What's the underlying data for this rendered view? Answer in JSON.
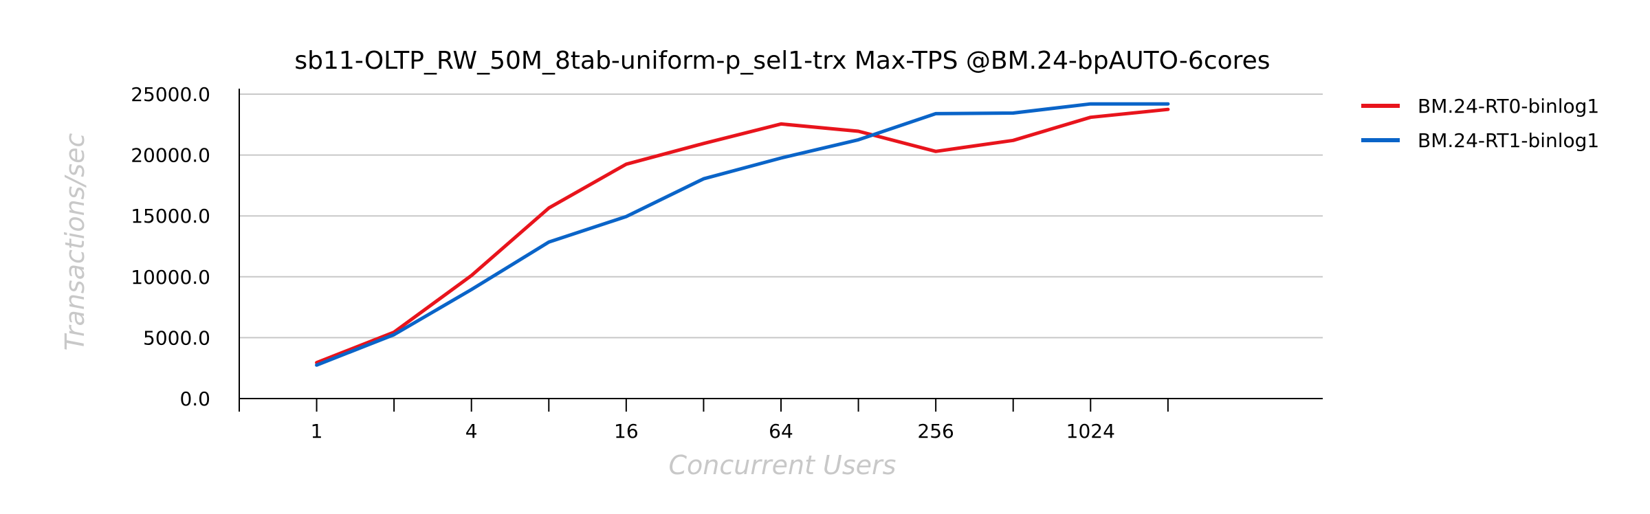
{
  "chart_data": {
    "type": "line",
    "title": "sb11-OLTP_RW_50M_8tab-uniform-p_sel1-trx Max-TPS @BM.24-bpAUTO-6cores",
    "xlabel": "Concurrent Users",
    "ylabel": "Transactions/sec",
    "x_scale": "log2",
    "x": [
      1,
      2,
      4,
      8,
      16,
      32,
      64,
      128,
      256,
      512,
      1024,
      2048
    ],
    "x_tick_labels": [
      "1",
      "4",
      "16",
      "64",
      "256",
      "1024"
    ],
    "x_tick_values": [
      1,
      4,
      16,
      64,
      256,
      1024
    ],
    "xlim": [
      0.5,
      8192
    ],
    "ylim": [
      0,
      25000
    ],
    "y_ticks": [
      0,
      5000,
      10000,
      15000,
      20000,
      25000
    ],
    "y_tick_labels": [
      "0.0",
      "5000.0",
      "10000.0",
      "15000.0",
      "20000.0",
      "25000.0"
    ],
    "grid": "horizontal",
    "legend_position": "right",
    "series": [
      {
        "name": "BM.24-RT0-binlog1",
        "color": "#e8141c",
        "values": [
          2950,
          5450,
          10100,
          15650,
          19250,
          20950,
          22550,
          21950,
          20300,
          21200,
          23100,
          23750
        ]
      },
      {
        "name": "BM.24-RT1-binlog1",
        "color": "#0a64c8",
        "values": [
          2750,
          5250,
          8950,
          12850,
          14950,
          18050,
          19750,
          21250,
          23400,
          23450,
          24200,
          24200
        ]
      }
    ]
  }
}
